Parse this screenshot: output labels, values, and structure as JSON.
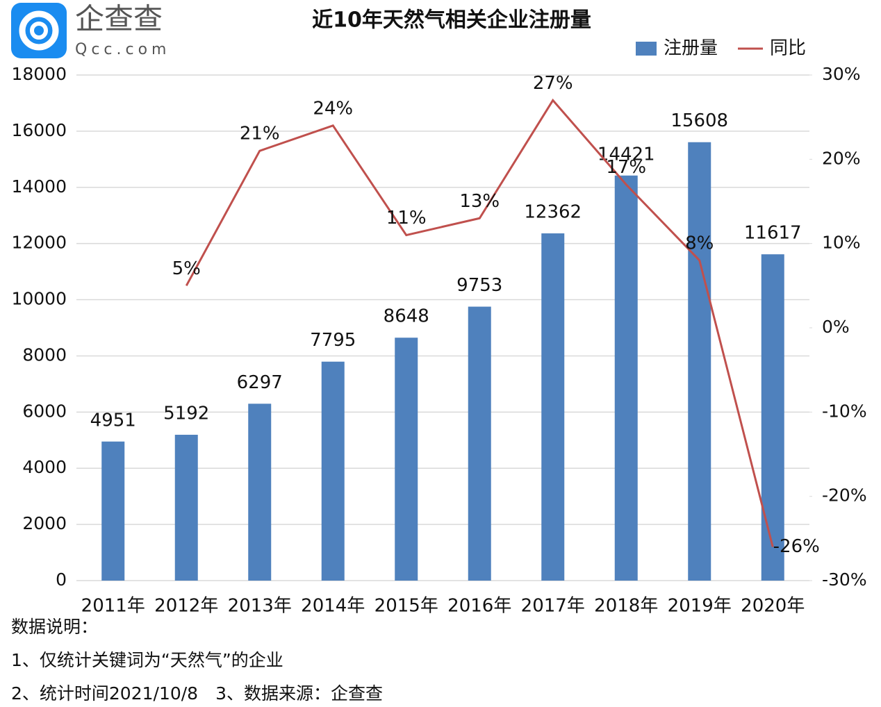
{
  "logo": {
    "name": "企查查",
    "site": "Qcc.com"
  },
  "chart_data": {
    "type": "bar-line",
    "title": "近10年天然气相关企业注册量",
    "categories": [
      "2011年",
      "2012年",
      "2013年",
      "2014年",
      "2015年",
      "2016年",
      "2017年",
      "2018年",
      "2019年",
      "2020年"
    ],
    "series": [
      {
        "name": "注册量",
        "type": "bar",
        "color": "#4f81bd",
        "values": [
          4951,
          5192,
          6297,
          7795,
          8648,
          9753,
          12362,
          14421,
          15608,
          11617
        ]
      },
      {
        "name": "同比",
        "type": "line",
        "axis": "y2",
        "color": "#c0504d",
        "values": [
          null,
          5,
          21,
          24,
          11,
          13,
          27,
          17,
          8,
          -26
        ],
        "value_labels": [
          null,
          "5%",
          "21%",
          "24%",
          "11%",
          "13%",
          "27%",
          "17%",
          "8%",
          "-26%"
        ]
      }
    ],
    "ylim": [
      0,
      18000
    ],
    "yticks": [
      0,
      2000,
      4000,
      6000,
      8000,
      10000,
      12000,
      14000,
      16000,
      18000
    ],
    "y2lim": [
      -30,
      30
    ],
    "y2ticks": [
      {
        "value": -30,
        "label": "-30%"
      },
      {
        "value": -20,
        "label": "-20%"
      },
      {
        "value": -10,
        "label": "-10%"
      },
      {
        "value": 0,
        "label": "0%"
      },
      {
        "value": 10,
        "label": "10%"
      },
      {
        "value": 20,
        "label": "20%"
      },
      {
        "value": 30,
        "label": "30%"
      }
    ],
    "grid": true,
    "legend": "top-right"
  },
  "notes": [
    "数据说明：",
    "1、仅统计关键词为“天然气”的企业",
    "2、统计时间2021/10/8　3、数据来源：企查查"
  ]
}
